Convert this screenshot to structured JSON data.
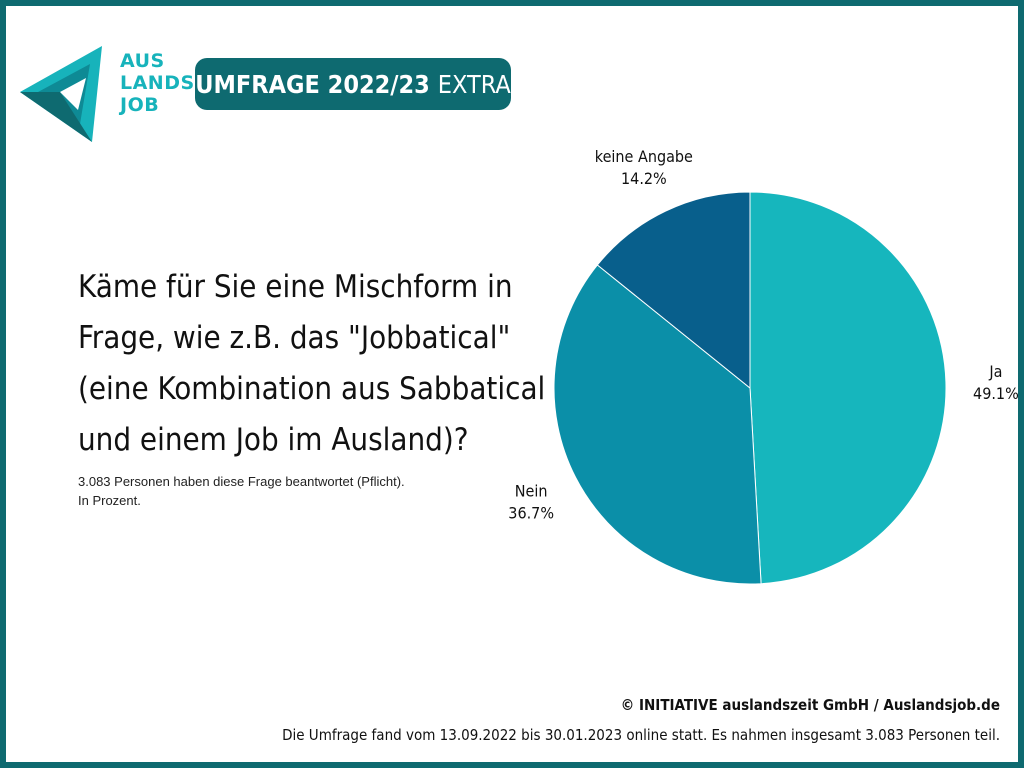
{
  "logo": {
    "lines": [
      "AUS",
      "LANDS",
      "JOB"
    ],
    "color": "#17b3bb"
  },
  "badge": {
    "bold": "UMFRAGE 2022/23",
    "light": "EXTRA",
    "background": "#0e6a70"
  },
  "question": {
    "lines": [
      "Käme für Sie eine Mischform in",
      "Frage, wie z.B. das \"Jobbatical\"",
      "(eine Kombination aus Sabbatical",
      "und einem Job im Ausland)?"
    ]
  },
  "note": {
    "line1": "3.083 Personen haben diese Frage beantwortet (Pflicht).",
    "line2": "In Prozent."
  },
  "chart_data": {
    "type": "pie",
    "title": "",
    "unit": "%",
    "slices": [
      {
        "label": "Ja",
        "value": 49.1,
        "display": "49.1%",
        "color": "#16b6bd"
      },
      {
        "label": "Nein",
        "value": 36.7,
        "display": "36.7%",
        "color": "#0b8fa8"
      },
      {
        "label": "keine Angabe",
        "value": 14.2,
        "display": "14.2%",
        "color": "#085f8c"
      }
    ],
    "start": "12 o'clock",
    "direction": "clockwise",
    "legend": "none"
  },
  "footer": {
    "copyright": "© INITIATIVE auslandszeit GmbH / Auslandsjob.de",
    "info": "Die Umfrage fand vom 13.09.2022 bis 30.01.2023 online statt. Es nahmen insgesamt 3.083 Personen teil."
  },
  "frame": {
    "color": "#0e6a70"
  }
}
